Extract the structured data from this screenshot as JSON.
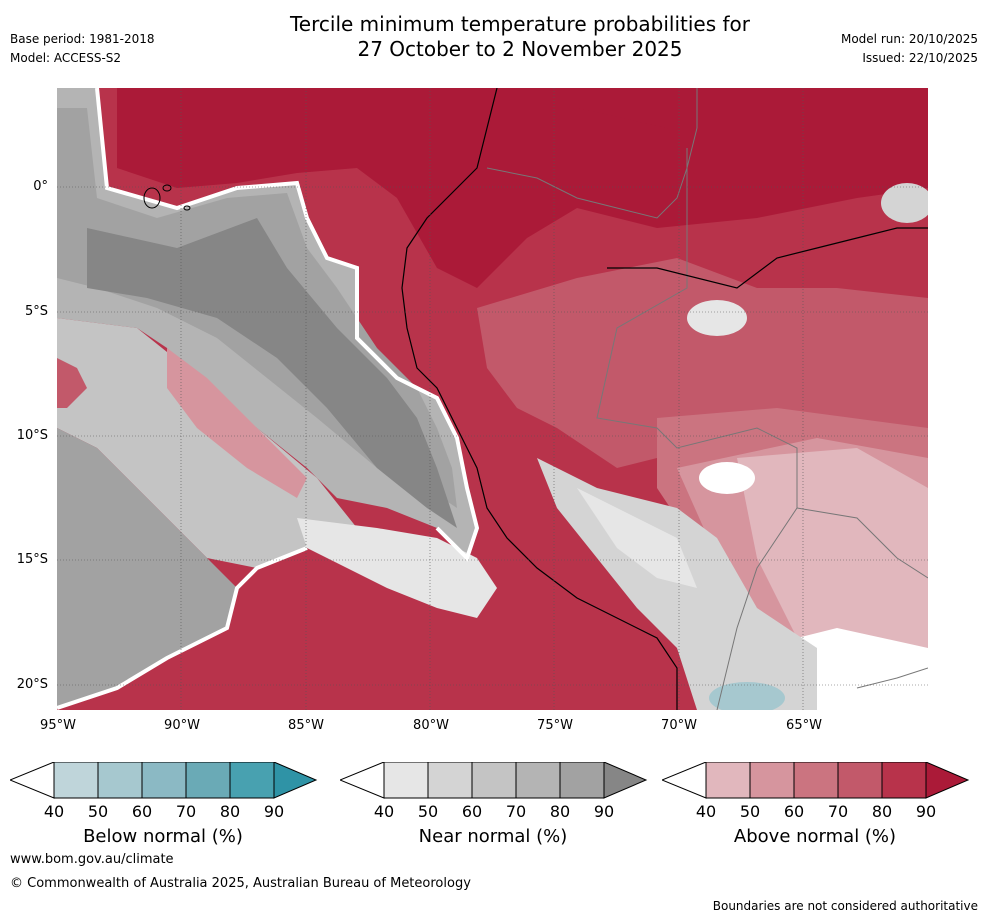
{
  "header": {
    "title_line1": "Tercile minimum temperature probabilities for",
    "title_line2": "27 October to 2 November 2025",
    "base_period": "Base period: 1981-2018",
    "model": "Model: ACCESS-S2",
    "model_run": "Model run: 20/10/2025",
    "issued": "Issued: 22/10/2025"
  },
  "map": {
    "lat_labels": [
      "0°",
      "5°S",
      "10°S",
      "15°S",
      "20°S"
    ],
    "lon_labels": [
      "95°W",
      "90°W",
      "85°W",
      "80°W",
      "75°W",
      "70°W",
      "65°W"
    ]
  },
  "legends": [
    {
      "title": "Below normal (%)",
      "ticks": [
        "40",
        "50",
        "60",
        "70",
        "80",
        "90"
      ],
      "colors": [
        "#bfd5da",
        "#a6c8cf",
        "#8bb9c4",
        "#6aaab6",
        "#48a1b0",
        "#2f93a6"
      ]
    },
    {
      "title": "Near normal (%)",
      "ticks": [
        "40",
        "50",
        "60",
        "70",
        "80",
        "90"
      ],
      "colors": [
        "#e6e6e6",
        "#d4d4d4",
        "#c4c4c4",
        "#b4b4b4",
        "#a2a2a2",
        "#868686"
      ]
    },
    {
      "title": "Above normal (%)",
      "ticks": [
        "40",
        "50",
        "60",
        "70",
        "80",
        "90"
      ],
      "colors": [
        "#e1b7bd",
        "#d6959e",
        "#cb7480",
        "#c2596a",
        "#b8334b",
        "#ab1a38"
      ]
    }
  ],
  "footer": {
    "website": "www.bom.gov.au/climate",
    "copyright": "© Commonwealth of Australia 2025, Australian Bureau of Meteorology",
    "disclaimer": "Boundaries are not considered authoritative"
  }
}
